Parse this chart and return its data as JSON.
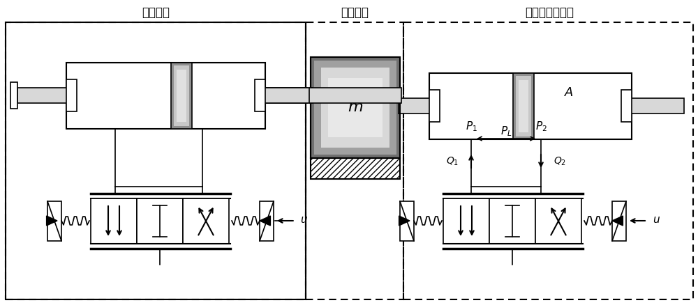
{
  "title_left": "舵机系统",
  "title_mid": "惯性负载",
  "title_right": "电液负载模拟器",
  "label_m": "m",
  "label_A": "A",
  "label_u": "u",
  "bg_color": "#ffffff",
  "fig_w": 10.0,
  "fig_h": 4.38,
  "dpi": 100
}
